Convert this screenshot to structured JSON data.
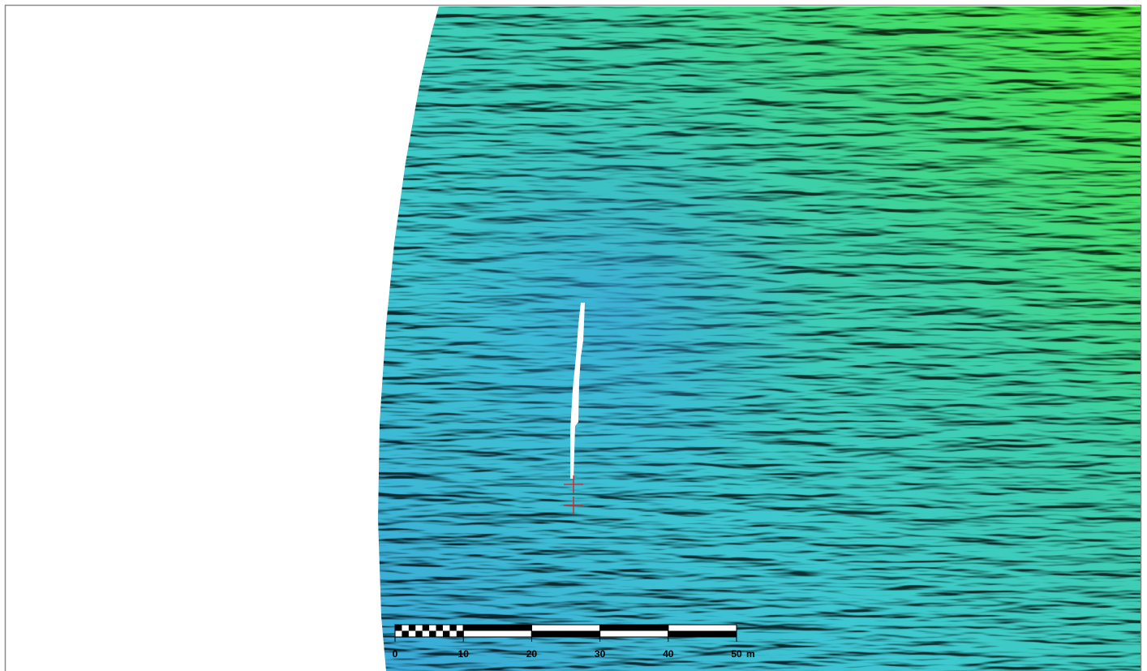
{
  "scale_bar": {
    "ticks": [
      0,
      10,
      20,
      30,
      40,
      50
    ],
    "unit": "m"
  }
}
